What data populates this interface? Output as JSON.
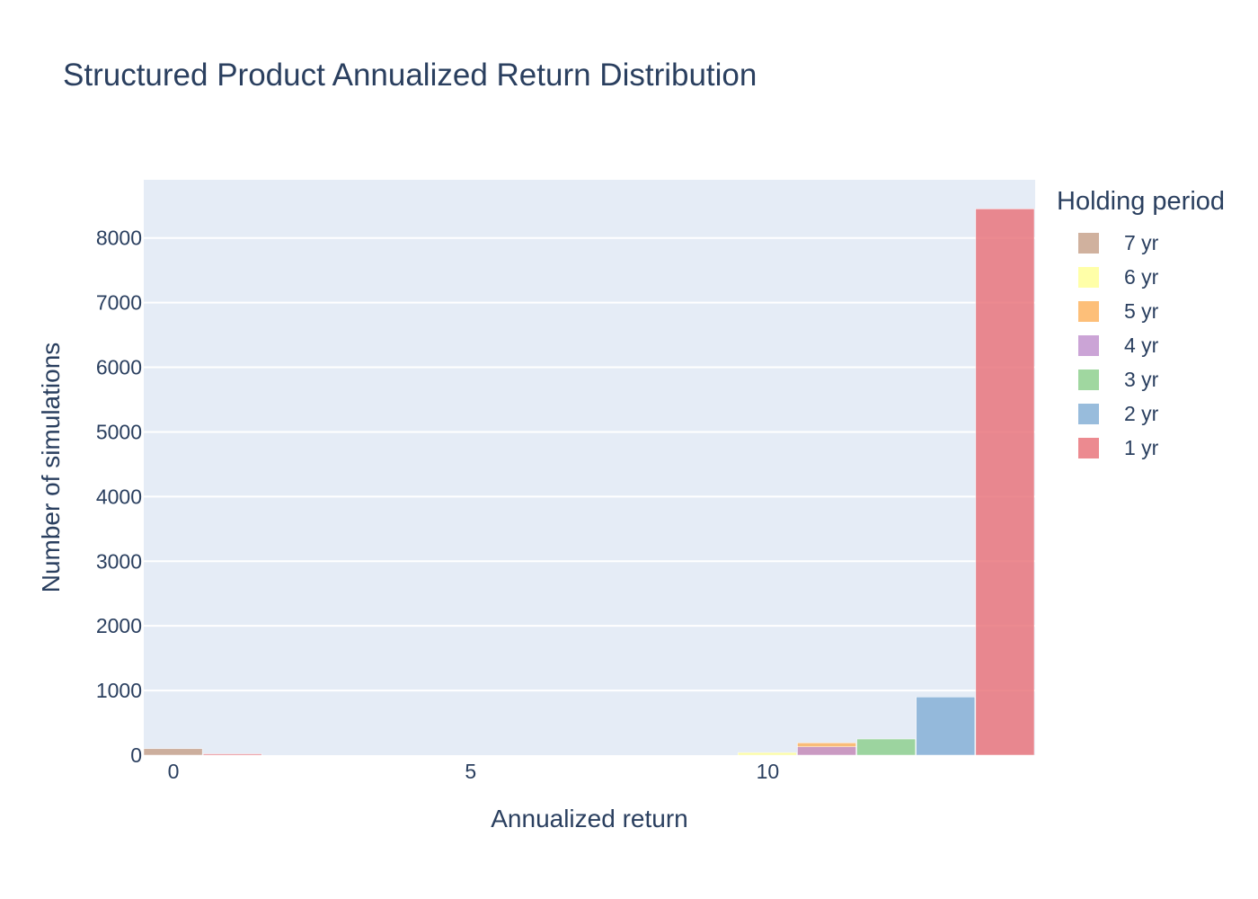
{
  "chart_data": {
    "type": "bar",
    "title": "Structured Product Annualized Return Distribution",
    "xlabel": "Annualized return",
    "ylabel": "Number of simulations",
    "xlim": [
      -0.5,
      14.5
    ],
    "ylim": [
      0,
      8900
    ],
    "x_ticks": [
      0,
      5,
      10
    ],
    "y_ticks": [
      0,
      1000,
      2000,
      3000,
      4000,
      5000,
      6000,
      7000,
      8000
    ],
    "grid": true,
    "barmode": "overlay",
    "bin_width": 1,
    "legend": {
      "title": "Holding period",
      "placement": "right"
    },
    "series": [
      {
        "name": "7 yr",
        "color": "#c8a38d",
        "bins": [
          {
            "x": 0,
            "y": 100
          }
        ]
      },
      {
        "name": "6 yr",
        "color": "#ffff99",
        "bins": [
          {
            "x": 10,
            "y": 40
          }
        ]
      },
      {
        "name": "5 yr",
        "color": "#fdb462",
        "bins": [
          {
            "x": 11,
            "y": 190
          }
        ]
      },
      {
        "name": "4 yr",
        "color": "#c294cf",
        "bins": [
          {
            "x": 11,
            "y": 130
          }
        ]
      },
      {
        "name": "3 yr",
        "color": "#8fd08f",
        "bins": [
          {
            "x": 12,
            "y": 250
          }
        ]
      },
      {
        "name": "2 yr",
        "color": "#86b0d6",
        "bins": [
          {
            "x": 13,
            "y": 900
          }
        ]
      },
      {
        "name": "1 yr",
        "color": "#e9757d",
        "bins": [
          {
            "x": 1,
            "y": 20
          },
          {
            "x": 14,
            "y": 8450
          }
        ]
      }
    ]
  }
}
